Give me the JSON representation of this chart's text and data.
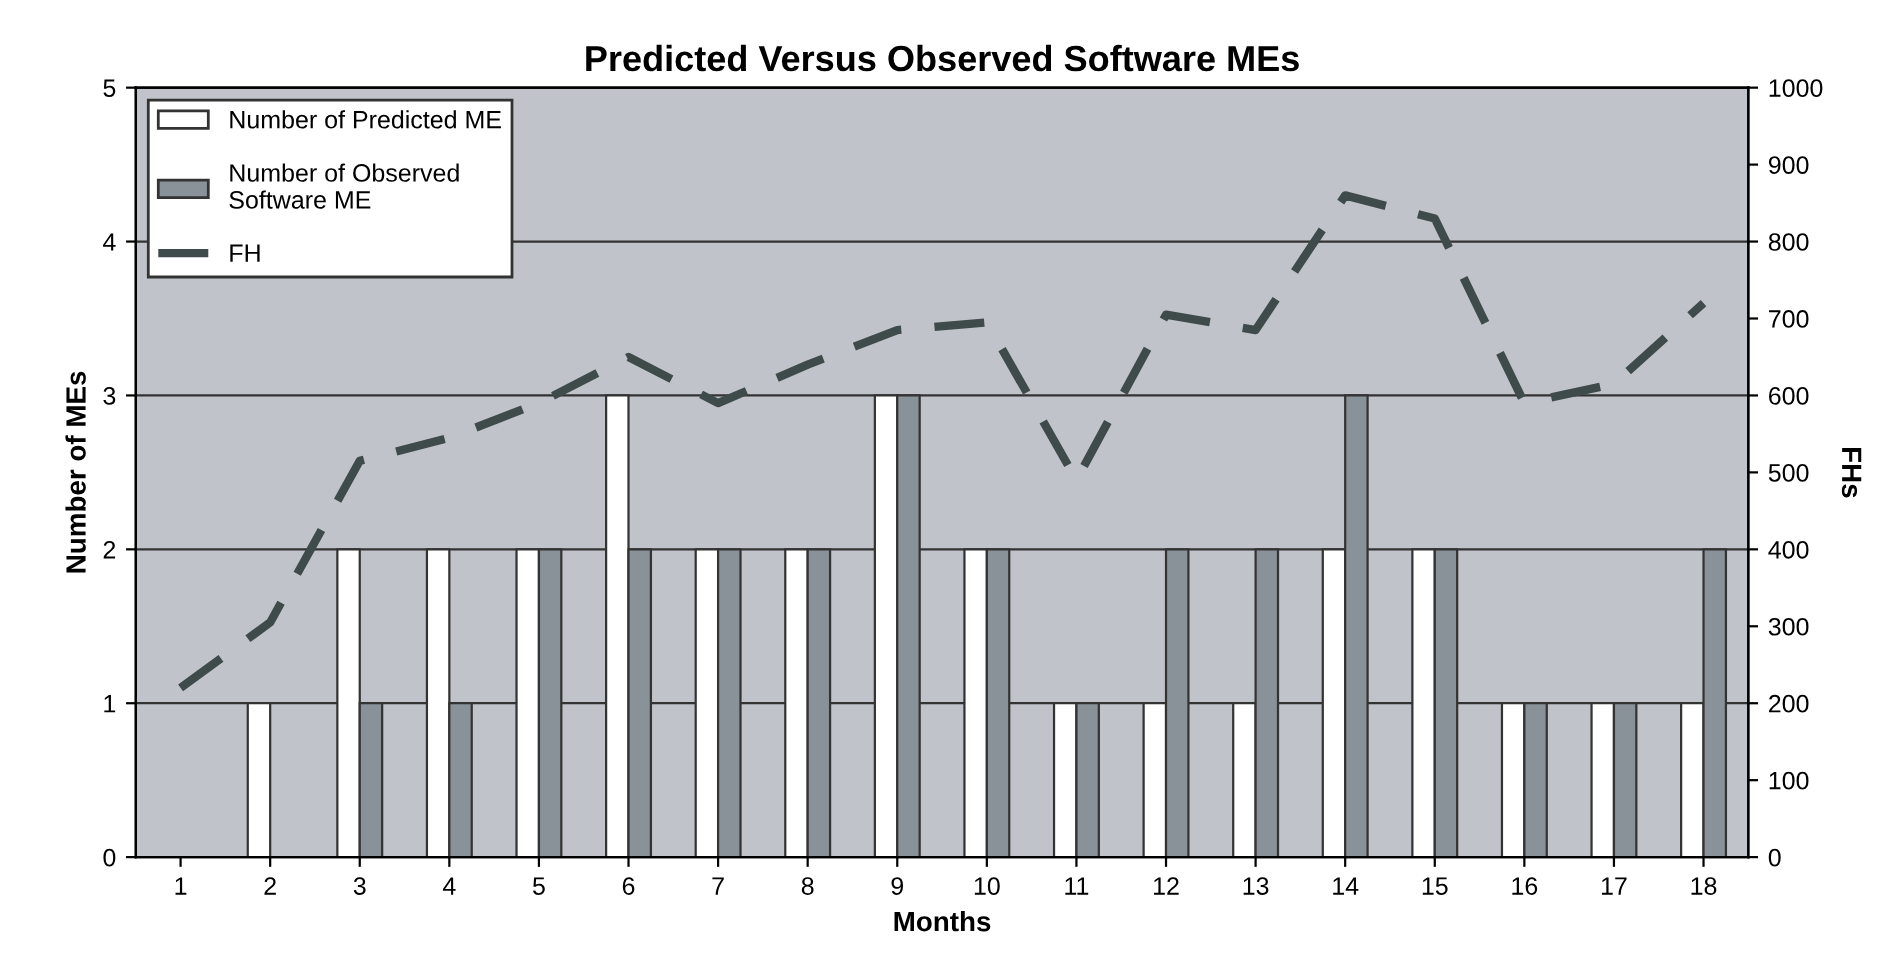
{
  "chart_data": {
    "type": "bar",
    "title": "Predicted Versus Observed Software MEs",
    "xlabel": "Months",
    "ylabel": "Number of MEs",
    "y2label": "FHs",
    "categories": [
      "1",
      "2",
      "3",
      "4",
      "5",
      "6",
      "7",
      "8",
      "9",
      "10",
      "11",
      "12",
      "13",
      "14",
      "15",
      "16",
      "17",
      "18"
    ],
    "series": [
      {
        "name": "Number of Predicted ME",
        "color": "#ffffff",
        "values": [
          0,
          1,
          2,
          2,
          2,
          3,
          2,
          2,
          3,
          2,
          1,
          1,
          1,
          2,
          2,
          1,
          1,
          1
        ]
      },
      {
        "name": "Number of Observed\nSoftware ME",
        "color": "#8a9299",
        "values": [
          0,
          0,
          1,
          1,
          2,
          2,
          2,
          2,
          3,
          2,
          1,
          2,
          2,
          3,
          2,
          1,
          1,
          2
        ]
      },
      {
        "name": "FH",
        "type": "line",
        "axis": "y2",
        "color": "#3f4a4a",
        "line_style": "dashed",
        "values": [
          220,
          305,
          515,
          545,
          590,
          650,
          590,
          640,
          685,
          695,
          490,
          705,
          685,
          860,
          830,
          590,
          615,
          720
        ]
      }
    ],
    "ylim": [
      0,
      5
    ],
    "yticks": [
      0,
      1,
      2,
      3,
      4,
      5
    ],
    "y2lim": [
      0,
      1000
    ],
    "y2ticks": [
      0,
      100,
      200,
      300,
      400,
      500,
      600,
      700,
      800,
      900,
      1000
    ],
    "grid": "y",
    "legend": "top left"
  }
}
